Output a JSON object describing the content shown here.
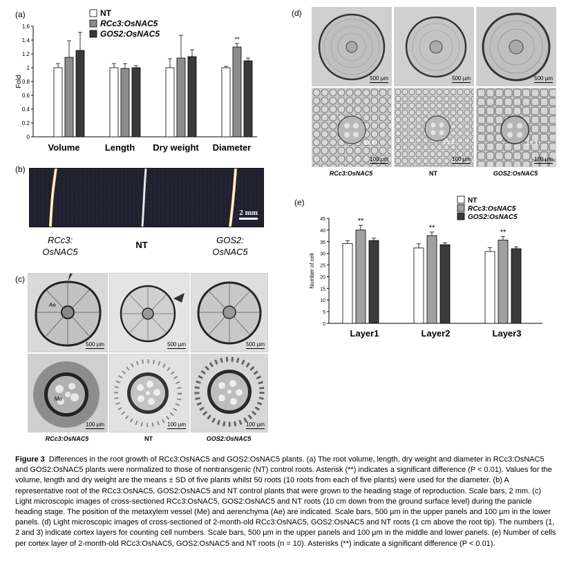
{
  "panel_a": {
    "label": "(a)",
    "legend": [
      "NT",
      "RCc3:OsNAC5",
      "GOS2:OsNAC5"
    ],
    "annotation": "**",
    "chart_data": {
      "type": "bar",
      "categories": [
        "Volume",
        "Length",
        "Dry weight",
        "Diameter"
      ],
      "series": [
        {
          "name": "NT",
          "values": [
            1.0,
            1.0,
            1.0,
            1.0
          ],
          "errors": [
            0.06,
            0.06,
            0.13,
            0.02
          ]
        },
        {
          "name": "RCc3:OsNAC5",
          "values": [
            1.15,
            0.99,
            1.14,
            1.3
          ],
          "errors": [
            0.24,
            0.07,
            0.33,
            0.05
          ]
        },
        {
          "name": "GOS2:OsNAC5",
          "values": [
            1.25,
            1.0,
            1.16,
            1.1
          ],
          "errors": [
            0.26,
            0.03,
            0.1,
            0.04
          ]
        }
      ],
      "colors": [
        "#ffffff",
        "#8c8c8c",
        "#3a3a3a"
      ],
      "ylabel": "Fold",
      "ylim": [
        0,
        1.6
      ],
      "yticks": [
        "0",
        "0.2",
        "0.4",
        "0.6",
        "0.8",
        "1",
        "1.2",
        "1.4",
        "1.6"
      ]
    }
  },
  "panel_b": {
    "label": "(b)",
    "scale": "2 mm",
    "samples": [
      "RCc3:\nOsNAC5",
      "NT",
      "GOS2:\nOsNAC5"
    ]
  },
  "panel_c": {
    "label": "(c)",
    "scale_upper": "500 µm",
    "scale_lower": "100 µm",
    "mark_ae": "Ae",
    "mark_me": "Me",
    "samples": [
      "RCc3:OsNAC5",
      "NT",
      "GOS2:OsNAC5"
    ]
  },
  "panel_d": {
    "label": "(d)",
    "scale_upper": "500 µm",
    "scale_lower": "100 µm",
    "layers_mark": "1 2 3",
    "samples": [
      "RCc3:OsNAC5",
      "NT",
      "GOS2:OsNAC5"
    ]
  },
  "panel_e": {
    "label": "(e)",
    "legend": [
      "NT",
      "RCc3:OsNAC5",
      "GOS2:OsNAC5"
    ],
    "annotation": "**",
    "chart_data": {
      "type": "bar",
      "categories": [
        "Layer1",
        "Layer2",
        "Layer3"
      ],
      "series": [
        {
          "name": "NT",
          "values": [
            34.2,
            32.3,
            30.8
          ],
          "errors": [
            1.2,
            1.8,
            1.6
          ]
        },
        {
          "name": "RCc3:OsNAC5",
          "values": [
            40.0,
            37.6,
            35.7
          ],
          "errors": [
            2.0,
            1.5,
            1.5
          ]
        },
        {
          "name": "GOS2:OsNAC5",
          "values": [
            35.5,
            33.7,
            32.0
          ],
          "errors": [
            1.0,
            0.8,
            0.8
          ]
        }
      ],
      "colors": [
        "#ffffff",
        "#a0a0a0",
        "#3a3a3a"
      ],
      "ylabel": "Number of cell",
      "ylim": [
        0,
        45
      ],
      "yticks": [
        "0",
        "5",
        "10",
        "15",
        "20",
        "25",
        "30",
        "35",
        "40",
        "45"
      ]
    }
  },
  "caption": {
    "title": "Figure 3",
    "text": "Differences in the root growth of RCc3:OsNAC5 and GOS2:OsNAC5 plants. (a) The root volume, length, dry weight and diameter in RCc3:OsNAC5 and GOS2:OsNAC5 plants were normalized to those of nontransgenic (NT) control roots. Asterisk (**) indicates a significant difference (P < 0.01). Values for the volume, length and dry weight are the means ± SD of five plants whilst 50 roots (10 roots from each of five plants) were used for the diameter. (b) A representative root of the RCc3:OsNAC5, GOS2:OsNAC5 and NT control plants that were grown to the heading stage of reproduction. Scale bars, 2 mm. (c) Light microscopic images of cross-sectioned RCc3:OsNAC5, GOS2:OsNAC5 and NT roots (10 cm down from the ground surface level) during the panicle heading stage. The position of the metaxylem vessel (Me) and aerenchyma (Ae) are indicated. Scale bars, 500 µm in the upper panels and 100 µm in the lower panels. (d) Light microscopic images of cross-sectioned of 2-month-old RCc3:OsNAC5, GOS2:OsNAC5 and NT roots (1 cm above the root tip). The numbers (1, 2 and 3) indicate cortex layers for counting cell numbers. Scale bars, 500 µm in the upper panels and 100 µm in the middle and lower panels. (e) Number of cells per cortex layer of 2-month-old RCc3:OsNAC5, GOS2:OsNAC5 and NT roots (n = 10). Asterisks (**) indicate a significant difference (P < 0.01)."
  }
}
